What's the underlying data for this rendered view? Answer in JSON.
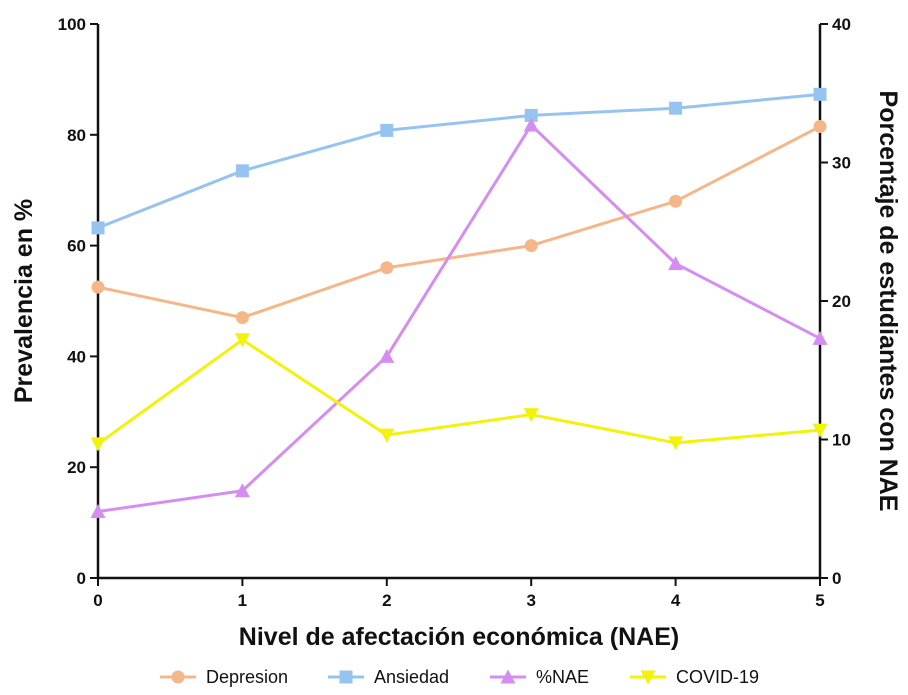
{
  "chart_data": {
    "type": "line",
    "title": "",
    "xlabel": "Nivel de afectación económica (NAE)",
    "ylabel_left": "Prevalencia en %",
    "ylabel_right": "Porcentaje de estudiantes con NAE",
    "x": [
      0,
      1,
      2,
      3,
      4,
      5
    ],
    "xlim": [
      0,
      5
    ],
    "ylim_left": [
      0,
      100
    ],
    "ylim_right": [
      0,
      40
    ],
    "yticks_left": [
      0,
      20,
      40,
      60,
      80,
      100
    ],
    "yticks_right": [
      0,
      10,
      20,
      30,
      40
    ],
    "grid": false,
    "legend_position": "bottom",
    "series": [
      {
        "name": "Depresion",
        "axis": "left",
        "marker": "circle",
        "color": "#f5b78a",
        "values": [
          52.5,
          47,
          56,
          60,
          68,
          81.5
        ]
      },
      {
        "name": "Ansiedad",
        "axis": "left",
        "marker": "square",
        "color": "#97c3f0",
        "values": [
          63.2,
          73.5,
          80.8,
          83.5,
          84.8,
          87.3
        ]
      },
      {
        "name": "%NAE",
        "axis": "right",
        "marker": "triangle",
        "color": "#d58ef0",
        "values": [
          4.8,
          6.3,
          16,
          32.7,
          22.7,
          17.3
        ]
      },
      {
        "name": "COVID-19",
        "axis": "left",
        "marker": "triangle-down",
        "color": "#f2f20a",
        "values": [
          24.2,
          43,
          25.8,
          29.5,
          24.4,
          26.7
        ]
      }
    ]
  }
}
